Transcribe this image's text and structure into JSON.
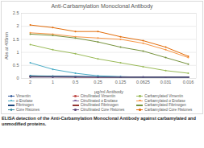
{
  "chart_data": {
    "type": "line",
    "title": "Anti-Carbamylation Monoclonal Antibody",
    "x_label": "µg/ml Antibody",
    "y_label": "Abs at 405nm",
    "caption": "ELISA detection of the Anti-Carbamylation Monoclonal Antibody against carbamylated and unmodified proteins.",
    "categories": [
      "2",
      "1",
      "0.5",
      "0.25",
      "0.125",
      "0.0625",
      "0.031",
      "0.016"
    ],
    "ylim": [
      0,
      2.5
    ],
    "yticks": [
      0,
      0.5,
      1,
      1.5,
      2,
      2.5
    ],
    "grid": true,
    "legend": "bottom",
    "marker": "circle",
    "series": [
      {
        "name": "Vimentin",
        "color": "#2e5597",
        "values": [
          0.1,
          0.09,
          0.08,
          0.07,
          0.06,
          0.06,
          0.05,
          0.05
        ]
      },
      {
        "name": "Citrullinated Vimentin",
        "color": "#c0504d",
        "values": [
          0.07,
          0.06,
          0.06,
          0.05,
          0.05,
          0.05,
          0.05,
          0.05
        ]
      },
      {
        "name": "Carbamylated Vimentin",
        "color": "#9bbb59",
        "values": [
          1.3,
          1.1,
          0.95,
          0.75,
          0.6,
          0.45,
          0.3,
          0.2
        ]
      },
      {
        "name": "α Enolase",
        "color": "#4bacc6",
        "values": [
          0.6,
          0.35,
          0.2,
          0.1,
          0.07,
          0.05,
          0.05,
          0.05
        ]
      },
      {
        "name": "Citrullinated α Enolase",
        "color": "#8064a2",
        "values": [
          0.08,
          0.07,
          0.06,
          0.05,
          0.05,
          0.05,
          0.05,
          0.05
        ]
      },
      {
        "name": "Carbamylated α Enolase",
        "color": "#f79646",
        "values": [
          1.75,
          1.7,
          1.6,
          1.55,
          1.5,
          1.35,
          1.1,
          0.8
        ]
      },
      {
        "name": "Fibrinogen",
        "color": "#1f497d",
        "values": [
          0.08,
          0.07,
          0.06,
          0.06,
          0.05,
          0.05,
          0.05,
          0.05
        ]
      },
      {
        "name": "Citrullinated Fibrinogen",
        "color": "#943634",
        "values": [
          0.06,
          0.06,
          0.05,
          0.05,
          0.05,
          0.05,
          0.05,
          0.05
        ]
      },
      {
        "name": "Carbamylated Fibrinogen",
        "color": "#76923c",
        "values": [
          1.7,
          1.65,
          1.55,
          1.4,
          1.2,
          1.05,
          0.8,
          0.55
        ]
      },
      {
        "name": "Core Histones",
        "color": "#31859b",
        "values": [
          0.1,
          0.08,
          0.07,
          0.06,
          0.05,
          0.05,
          0.05,
          0.05
        ]
      },
      {
        "name": "Citrullinated Core Histones",
        "color": "#5f497a",
        "values": [
          0.05,
          0.05,
          0.05,
          0.05,
          0.05,
          0.05,
          0.05,
          0.05
        ]
      },
      {
        "name": "Carbamylated Core Histones",
        "color": "#e36c09",
        "values": [
          2.05,
          1.95,
          1.8,
          1.8,
          1.6,
          1.45,
          1.2,
          0.85
        ]
      }
    ]
  }
}
